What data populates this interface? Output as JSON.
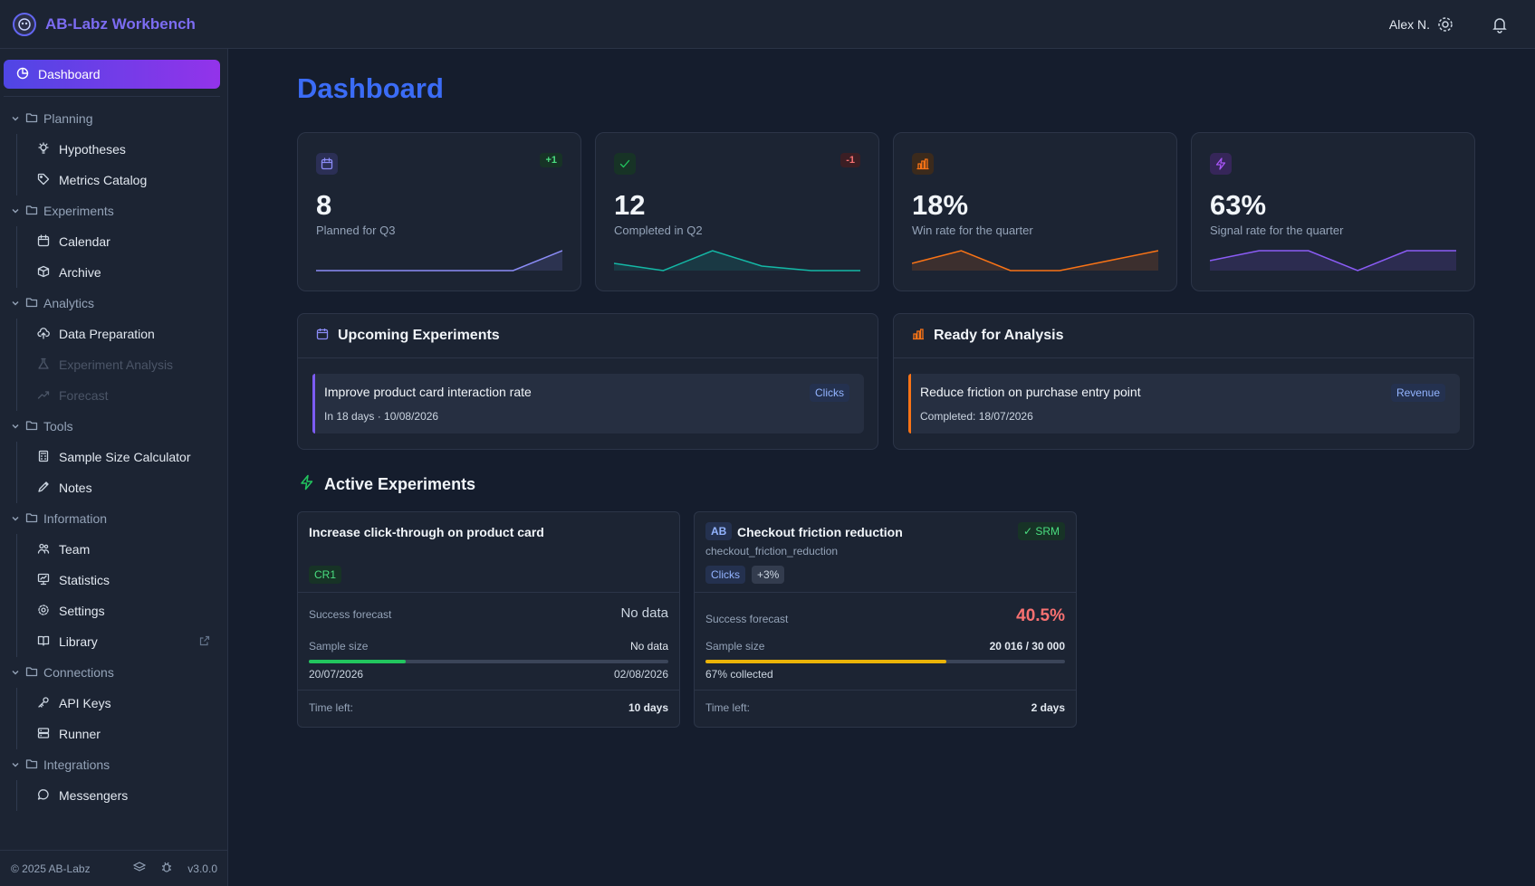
{
  "header": {
    "app_title": "AB-Labz Workbench",
    "user_name": "Alex N.",
    "icons": [
      "logo-icon",
      "gear-icon",
      "bell-icon"
    ]
  },
  "sidebar": {
    "active": {
      "label": "Dashboard",
      "icon": "pie-chart-icon"
    },
    "groups": [
      {
        "label": "Planning",
        "items": [
          {
            "label": "Hypotheses",
            "icon": "bulb-icon"
          },
          {
            "label": "Metrics Catalog",
            "icon": "tag-icon"
          }
        ]
      },
      {
        "label": "Experiments",
        "items": [
          {
            "label": "Calendar",
            "icon": "calendar-icon"
          },
          {
            "label": "Archive",
            "icon": "box-icon"
          }
        ]
      },
      {
        "label": "Analytics",
        "items": [
          {
            "label": "Data Preparation",
            "icon": "cloud-upload-icon"
          },
          {
            "label": "Experiment Analysis",
            "icon": "flask-icon",
            "disabled": true
          },
          {
            "label": "Forecast",
            "icon": "trend-icon",
            "disabled": true
          }
        ]
      },
      {
        "label": "Tools",
        "items": [
          {
            "label": "Sample Size Calculator",
            "icon": "calculator-icon"
          },
          {
            "label": "Notes",
            "icon": "pen-icon"
          }
        ]
      },
      {
        "label": "Information",
        "items": [
          {
            "label": "Team",
            "icon": "team-icon"
          },
          {
            "label": "Statistics",
            "icon": "presentation-icon"
          },
          {
            "label": "Settings",
            "icon": "gear-icon"
          },
          {
            "label": "Library",
            "icon": "book-icon",
            "external": true
          }
        ]
      },
      {
        "label": "Connections",
        "items": [
          {
            "label": "API Keys",
            "icon": "key-icon"
          },
          {
            "label": "Runner",
            "icon": "server-icon"
          }
        ]
      },
      {
        "label": "Integrations",
        "items": [
          {
            "label": "Messengers",
            "icon": "chat-icon"
          }
        ]
      }
    ],
    "footer": {
      "copyright": "© 2025 AB-Labz",
      "version": "v3.0.0"
    }
  },
  "main": {
    "title": "Dashboard",
    "stats": [
      {
        "value": "8",
        "label": "Planned for Q3",
        "delta": "+1",
        "icon": "calendar-icon",
        "color": "#8b8cf7"
      },
      {
        "value": "12",
        "label": "Completed in Q2",
        "delta": "-1",
        "icon": "check-icon",
        "color": "#22c55e"
      },
      {
        "value": "18%",
        "label": "Win rate for the quarter",
        "icon": "bar-chart-icon",
        "color": "#f97316"
      },
      {
        "value": "63%",
        "label": "Signal rate for the quarter",
        "icon": "bolt-icon",
        "color": "#a855f7"
      }
    ],
    "upcoming": {
      "title": "Upcoming Experiments",
      "item": {
        "title": "Improve product card interaction rate",
        "subtitle": "In 18 days · 10/08/2026",
        "tag": "Clicks"
      }
    },
    "ready": {
      "title": "Ready for Analysis",
      "item": {
        "title": "Reduce friction on purchase entry point",
        "subtitle": "Completed: 18/07/2026",
        "tag": "Revenue"
      }
    },
    "active_title": "Active Experiments",
    "experiments": [
      {
        "title": "Increase click-through on product card",
        "tag": "CR1",
        "forecast_label": "Success forecast",
        "forecast_value": "No data",
        "sample_label": "Sample size",
        "sample_value": "No data",
        "progress": 0.27,
        "start": "20/07/2026",
        "end": "02/08/2026",
        "time_label": "Time left:",
        "time_value": "10 days"
      },
      {
        "badge": "AB",
        "title": "Checkout friction reduction",
        "key": "checkout_friction_reduction",
        "srm": "✓ SRM",
        "tags": [
          "Clicks",
          "+3%"
        ],
        "forecast_label": "Success forecast",
        "forecast_value": "40.5%",
        "sample_label": "Sample size",
        "sample_value": "20 016 / 30 000",
        "progress": 0.67,
        "collected": "67% collected",
        "time_label": "Time left:",
        "time_value": "2 days"
      }
    ]
  }
}
